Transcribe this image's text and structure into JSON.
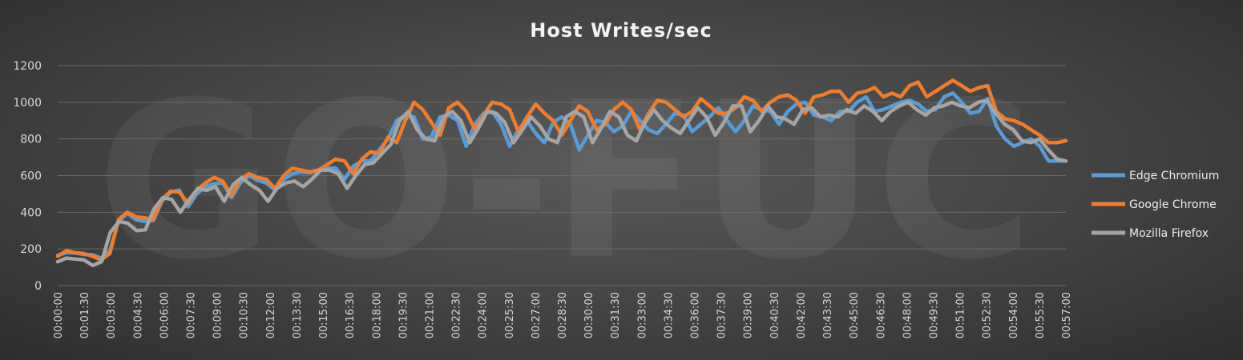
{
  "chart_data": {
    "type": "line",
    "title": "Host Writes/sec",
    "watermark": "GO-FUC",
    "ylim": [
      0,
      1200
    ],
    "yticks": [
      0,
      200,
      400,
      600,
      800,
      1000,
      1200
    ],
    "grid": true,
    "legend_position": "right",
    "x_tick_labels": [
      "00:00:00",
      "00:01:30",
      "00:03:00",
      "00:04:30",
      "00:06:00",
      "00:07:30",
      "00:09:00",
      "00:10:30",
      "00:12:00",
      "00:13:30",
      "00:15:00",
      "00:16:30",
      "00:18:00",
      "00:19:30",
      "00:21:00",
      "00:22:30",
      "00:24:00",
      "00:25:30",
      "00:27:00",
      "00:28:30",
      "00:30:00",
      "00:31:30",
      "00:33:00",
      "00:34:30",
      "00:36:00",
      "00:37:30",
      "00:39:00",
      "00:40:30",
      "00:42:00",
      "00:43:30",
      "00:45:00",
      "00:46:30",
      "00:48:00",
      "00:49:30",
      "00:51:00",
      "00:52:30",
      "00:54:00",
      "00:55:30",
      "00:57:00"
    ],
    "x_interval_seconds": 30,
    "series": [
      {
        "name": "Edge Chromium",
        "color": "#5b9bd5",
        "values": [
          165,
          180,
          178,
          170,
          168,
          150,
          190,
          350,
          395,
          360,
          350,
          355,
          460,
          510,
          520,
          430,
          500,
          540,
          555,
          560,
          480,
          560,
          600,
          575,
          560,
          520,
          580,
          610,
          620,
          615,
          630,
          640,
          640,
          580,
          650,
          680,
          680,
          740,
          800,
          900,
          930,
          920,
          800,
          810,
          920,
          930,
          900,
          760,
          880,
          940,
          950,
          880,
          760,
          850,
          900,
          830,
          780,
          890,
          920,
          880,
          740,
          820,
          900,
          890,
          840,
          870,
          950,
          900,
          850,
          830,
          880,
          940,
          930,
          840,
          880,
          920,
          970,
          900,
          840,
          900,
          980,
          960,
          950,
          880,
          950,
          990,
          1000,
          930,
          920,
          900,
          950,
          950,
          1000,
          1030,
          950,
          960,
          980,
          1000,
          1010,
          990,
          950,
          960,
          1030,
          1050,
          1000,
          940,
          950,
          1020,
          870,
          800,
          760,
          780,
          800,
          760,
          680,
          680,
          680
        ]
      },
      {
        "name": "Google Chrome",
        "color": "#ed7d31",
        "values": [
          160,
          190,
          180,
          175,
          160,
          140,
          175,
          360,
          400,
          375,
          370,
          360,
          470,
          515,
          510,
          450,
          520,
          560,
          590,
          570,
          490,
          580,
          610,
          590,
          580,
          530,
          600,
          640,
          630,
          620,
          630,
          660,
          690,
          680,
          610,
          690,
          730,
          720,
          810,
          780,
          900,
          1000,
          960,
          890,
          820,
          970,
          1000,
          950,
          850,
          930,
          1000,
          990,
          960,
          840,
          920,
          990,
          940,
          900,
          820,
          900,
          980,
          950,
          850,
          880,
          960,
          1000,
          960,
          850,
          940,
          1010,
          1000,
          960,
          920,
          950,
          1020,
          980,
          940,
          940,
          970,
          1030,
          1010,
          950,
          1000,
          1030,
          1040,
          1010,
          940,
          1030,
          1040,
          1060,
          1060,
          1000,
          1050,
          1060,
          1080,
          1030,
          1050,
          1030,
          1090,
          1110,
          1030,
          1060,
          1090,
          1120,
          1090,
          1060,
          1080,
          1090,
          950,
          910,
          900,
          880,
          850,
          820,
          780,
          780,
          790
        ]
      },
      {
        "name": "Mozilla Firefox",
        "color": "#a5a5a5",
        "values": [
          130,
          150,
          145,
          140,
          110,
          130,
          290,
          350,
          340,
          300,
          305,
          420,
          480,
          470,
          400,
          470,
          530,
          520,
          540,
          460,
          550,
          590,
          550,
          520,
          460,
          530,
          560,
          570,
          540,
          580,
          630,
          630,
          610,
          530,
          600,
          660,
          670,
          720,
          770,
          900,
          950,
          850,
          800,
          790,
          920,
          950,
          900,
          780,
          860,
          950,
          940,
          890,
          780,
          850,
          920,
          870,
          800,
          780,
          920,
          950,
          920,
          780,
          860,
          950,
          920,
          820,
          790,
          890,
          960,
          900,
          860,
          830,
          900,
          970,
          920,
          820,
          890,
          980,
          980,
          840,
          900,
          980,
          920,
          910,
          880,
          960,
          970,
          920,
          930,
          920,
          960,
          940,
          980,
          950,
          900,
          950,
          980,
          1000,
          960,
          930,
          970,
          980,
          1000,
          980,
          970,
          1000,
          1010,
          940,
          880,
          850,
          790,
          780,
          800,
          740,
          690,
          680
        ]
      }
    ]
  }
}
